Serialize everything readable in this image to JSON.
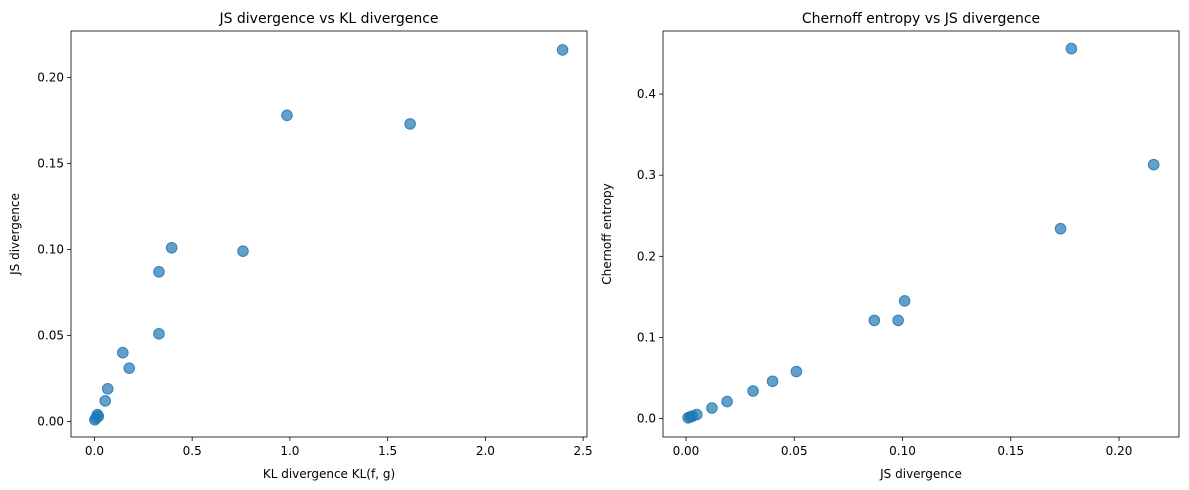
{
  "chart_data": [
    {
      "type": "scatter",
      "title": "JS divergence vs KL divergence",
      "xlabel": "KL divergence KL(f, g)",
      "ylabel": "JS divergence",
      "xlim": [
        -0.12,
        2.52
      ],
      "ylim": [
        -0.009,
        0.227
      ],
      "xticks": [
        0.0,
        0.5,
        1.0,
        1.5,
        2.0,
        2.5
      ],
      "xtick_labels": [
        "0.0",
        "0.5",
        "1.0",
        "1.5",
        "2.0",
        "2.5"
      ],
      "yticks": [
        0.0,
        0.05,
        0.1,
        0.15,
        0.2
      ],
      "ytick_labels": [
        "0.00",
        "0.05",
        "0.10",
        "0.15",
        "0.20"
      ],
      "grid": false,
      "color": "#1f77b4",
      "points": [
        {
          "x": 0.002,
          "y": 0.001
        },
        {
          "x": 0.008,
          "y": 0.002
        },
        {
          "x": 0.015,
          "y": 0.004
        },
        {
          "x": 0.02,
          "y": 0.003
        },
        {
          "x": 0.055,
          "y": 0.012
        },
        {
          "x": 0.068,
          "y": 0.019
        },
        {
          "x": 0.145,
          "y": 0.04
        },
        {
          "x": 0.178,
          "y": 0.031
        },
        {
          "x": 0.33,
          "y": 0.051
        },
        {
          "x": 0.33,
          "y": 0.087
        },
        {
          "x": 0.395,
          "y": 0.101
        },
        {
          "x": 0.76,
          "y": 0.099
        },
        {
          "x": 0.985,
          "y": 0.178
        },
        {
          "x": 1.615,
          "y": 0.173
        },
        {
          "x": 2.395,
          "y": 0.216
        }
      ]
    },
    {
      "type": "scatter",
      "title": "Chernoff entropy vs JS divergence",
      "xlabel": "JS divergence",
      "ylabel": "Chernoff entropy",
      "xlim": [
        -0.0106,
        0.2277
      ],
      "ylim": [
        -0.0227,
        0.4777
      ],
      "xticks": [
        0.0,
        0.05,
        0.1,
        0.15,
        0.2
      ],
      "xtick_labels": [
        "0.00",
        "0.05",
        "0.10",
        "0.15",
        "0.20"
      ],
      "yticks": [
        0.0,
        0.1,
        0.2,
        0.3,
        0.4
      ],
      "ytick_labels": [
        "0.0",
        "0.1",
        "0.2",
        "0.3",
        "0.4"
      ],
      "grid": false,
      "color": "#1f77b4",
      "points": [
        {
          "x": 0.001,
          "y": 0.001
        },
        {
          "x": 0.002,
          "y": 0.002
        },
        {
          "x": 0.003,
          "y": 0.003
        },
        {
          "x": 0.005,
          "y": 0.005
        },
        {
          "x": 0.012,
          "y": 0.013
        },
        {
          "x": 0.019,
          "y": 0.021
        },
        {
          "x": 0.031,
          "y": 0.034
        },
        {
          "x": 0.04,
          "y": 0.046
        },
        {
          "x": 0.051,
          "y": 0.058
        },
        {
          "x": 0.087,
          "y": 0.121
        },
        {
          "x": 0.098,
          "y": 0.121
        },
        {
          "x": 0.101,
          "y": 0.145
        },
        {
          "x": 0.173,
          "y": 0.234
        },
        {
          "x": 0.178,
          "y": 0.456
        },
        {
          "x": 0.216,
          "y": 0.313
        }
      ]
    }
  ]
}
